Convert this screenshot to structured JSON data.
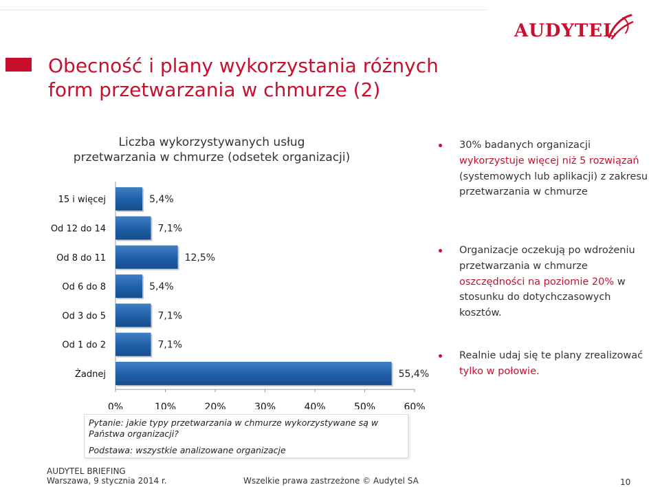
{
  "header": {
    "brand": "AUDYTEL",
    "title_line1": "Obecność i plany wykorzystania różnych",
    "title_line2": "form przetwarzania w chmurze (2)"
  },
  "chart_data": {
    "type": "bar",
    "orientation": "horizontal",
    "title_line1": "Liczba wykorzystywanych usług",
    "title_line2": "przetwarzania w chmurze (odsetek organizacji)",
    "categories": [
      "15 i więcej",
      "Od 12 do 14",
      "Od 8 do 11",
      "Od 6 do 8",
      "Od 3 do 5",
      "Od 1 do 2",
      "Żadnej"
    ],
    "values": [
      5.4,
      7.1,
      12.5,
      5.4,
      7.1,
      7.1,
      55.4
    ],
    "value_labels": [
      "5,4%",
      "7,1%",
      "12,5%",
      "5,4%",
      "7,1%",
      "7,1%",
      "55,4%"
    ],
    "xlim": [
      0,
      60
    ],
    "xticks": [
      "0%",
      "10%",
      "20%",
      "30%",
      "40%",
      "50%",
      "60%"
    ],
    "bar_color": "#1f5fa8",
    "grid": false
  },
  "bullets": [
    {
      "parts": [
        {
          "text": "30% badanych organizacji ",
          "hl": false
        },
        {
          "text": "wykorzystuje więcej niż 5 rozwiązań",
          "hl": true
        },
        {
          "text": " (systemowych lub aplikacji) z zakresu przetwarzania w chmurze",
          "hl": false
        }
      ]
    },
    {
      "parts": [
        {
          "text": "Organizacje oczekują po wdrożeniu przetwarzania w chmurze ",
          "hl": false
        },
        {
          "text": "oszczędności na poziomie 20%",
          "hl": true
        },
        {
          "text": " w stosunku do dotychczasowych kosztów.",
          "hl": false
        }
      ]
    },
    {
      "parts": [
        {
          "text": "Realnie udaj się te plany zrealizować ",
          "hl": false
        },
        {
          "text": "tylko w połowie.",
          "hl": true
        }
      ]
    }
  ],
  "note": {
    "question": "Pytanie: jakie typy przetwarzania w chmurze wykorzystywane są w Państwa organizacji?",
    "base": "Podstawa: wszystkie analizowane organizacje"
  },
  "footer": {
    "line1": "AUDYTEL BRIEFING",
    "line2": "Warszawa, 9 stycznia 2014 r.",
    "copyright": "Wszelkie prawa zastrzeżone © Audytel  SA",
    "page": "10"
  },
  "colors": {
    "accent": "#c8102e",
    "bar": "#1f5fa8"
  }
}
